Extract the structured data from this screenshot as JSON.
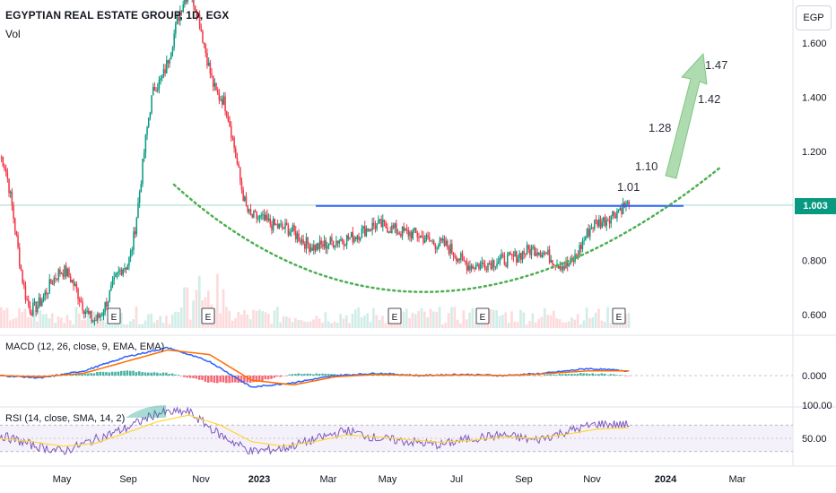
{
  "header": {
    "symbol_title": "EGYPTIAN REAL ESTATE GROUP, 1D, EGX",
    "volume_label": "Vol",
    "currency": "EGP"
  },
  "price_badge": "1.003",
  "indicators": {
    "macd_label": "MACD (12, 26, close, 9, EMA, EMA)",
    "rsi_label": "RSI (14, close, SMA, 14, 2)"
  },
  "earnings_marker": "E",
  "colors": {
    "up": "#089981",
    "down": "#f23645",
    "resistance": "#2962ff",
    "cup_curve": "#4caf50",
    "macd_line": "#2962ff",
    "signal_line": "#ff6d00",
    "rsi_line": "#7e57c2",
    "rsi_ma": "#fdd835",
    "rsi_band": "#ede7f6"
  },
  "chart_data": [
    {
      "type": "candlestick",
      "title": "EGYPTIAN REAL ESTATE GROUP, 1D, EGX",
      "y_axis_ticks": [
        "1.600",
        "1.400",
        "1.200",
        "0.800",
        "0.600"
      ],
      "ylim": [
        0.55,
        1.7
      ],
      "x_axis_ticks": [
        "May",
        "Sep",
        "Nov",
        "2023",
        "Mar",
        "May",
        "Jul",
        "Sep",
        "Nov",
        "2024",
        "Mar"
      ],
      "last_price": 1.003,
      "approximate_close_path": [
        {
          "period": "Apr 2022",
          "value": 1.18
        },
        {
          "period": "May 2022",
          "value": 0.62
        },
        {
          "period": "Jun 2022",
          "value": 0.76
        },
        {
          "period": "Jul 2022",
          "value": 0.58
        },
        {
          "period": "Aug 2022",
          "value": 0.78
        },
        {
          "period": "Sep 2022",
          "value": 1.45
        },
        {
          "period": "Oct 2022",
          "value": 1.78
        },
        {
          "period": "Nov 2022",
          "value": 1.4
        },
        {
          "period": "Dec 2022",
          "value": 0.96
        },
        {
          "period": "Jan 2023",
          "value": 0.92
        },
        {
          "period": "Feb 2023",
          "value": 0.85
        },
        {
          "period": "Mar 2023",
          "value": 0.88
        },
        {
          "period": "Apr 2023",
          "value": 0.93
        },
        {
          "period": "May 2023",
          "value": 0.9
        },
        {
          "period": "Jun 2023",
          "value": 0.86
        },
        {
          "period": "Jul 2023",
          "value": 0.78
        },
        {
          "period": "Aug 2023",
          "value": 0.8
        },
        {
          "period": "Sep 2023",
          "value": 0.84
        },
        {
          "period": "Oct 2023",
          "value": 0.78
        },
        {
          "period": "Nov 2023",
          "value": 0.94
        },
        {
          "period": "Dec 2023",
          "value": 1.003
        }
      ],
      "resistance_level": 1.0,
      "target_annotations": [
        "1.01",
        "1.10",
        "1.28",
        "1.42",
        "1.47"
      ],
      "earnings_events": [
        "Aug 2022",
        "Nov 2022",
        "May 2023",
        "Aug 2023",
        "Dec 2023"
      ]
    },
    {
      "type": "line",
      "title": "MACD (12, 26, close, 9, EMA, EMA)",
      "y_axis_ticks": [
        "0.000"
      ],
      "series": [
        {
          "name": "MACD",
          "values": [
            0.0,
            -0.01,
            0.02,
            0.08,
            0.12,
            0.06,
            -0.05,
            -0.03,
            0.0,
            0.01,
            0.0,
            0.005,
            0.0,
            0.01,
            0.03,
            0.02
          ]
        },
        {
          "name": "Signal",
          "values": [
            0.0,
            -0.005,
            0.01,
            0.06,
            0.11,
            0.09,
            -0.02,
            -0.04,
            -0.005,
            0.005,
            0.0,
            0.003,
            0.0,
            0.008,
            0.02,
            0.02
          ]
        }
      ]
    },
    {
      "type": "line",
      "title": "RSI (14, close, SMA, 14, 2)",
      "y_axis_ticks": [
        "100.00",
        "50.00"
      ],
      "ylim": [
        20,
        100
      ],
      "band": [
        30,
        70
      ],
      "series": [
        {
          "name": "RSI",
          "values": [
            55,
            40,
            30,
            48,
            65,
            88,
            90,
            55,
            30,
            35,
            48,
            62,
            50,
            45,
            40,
            50,
            55,
            47,
            60,
            72,
            70
          ]
        },
        {
          "name": "RSI-based MA",
          "values": [
            50,
            45,
            38,
            42,
            58,
            75,
            85,
            70,
            45,
            38,
            45,
            55,
            52,
            48,
            44,
            47,
            52,
            50,
            56,
            64,
            66
          ]
        }
      ]
    }
  ]
}
